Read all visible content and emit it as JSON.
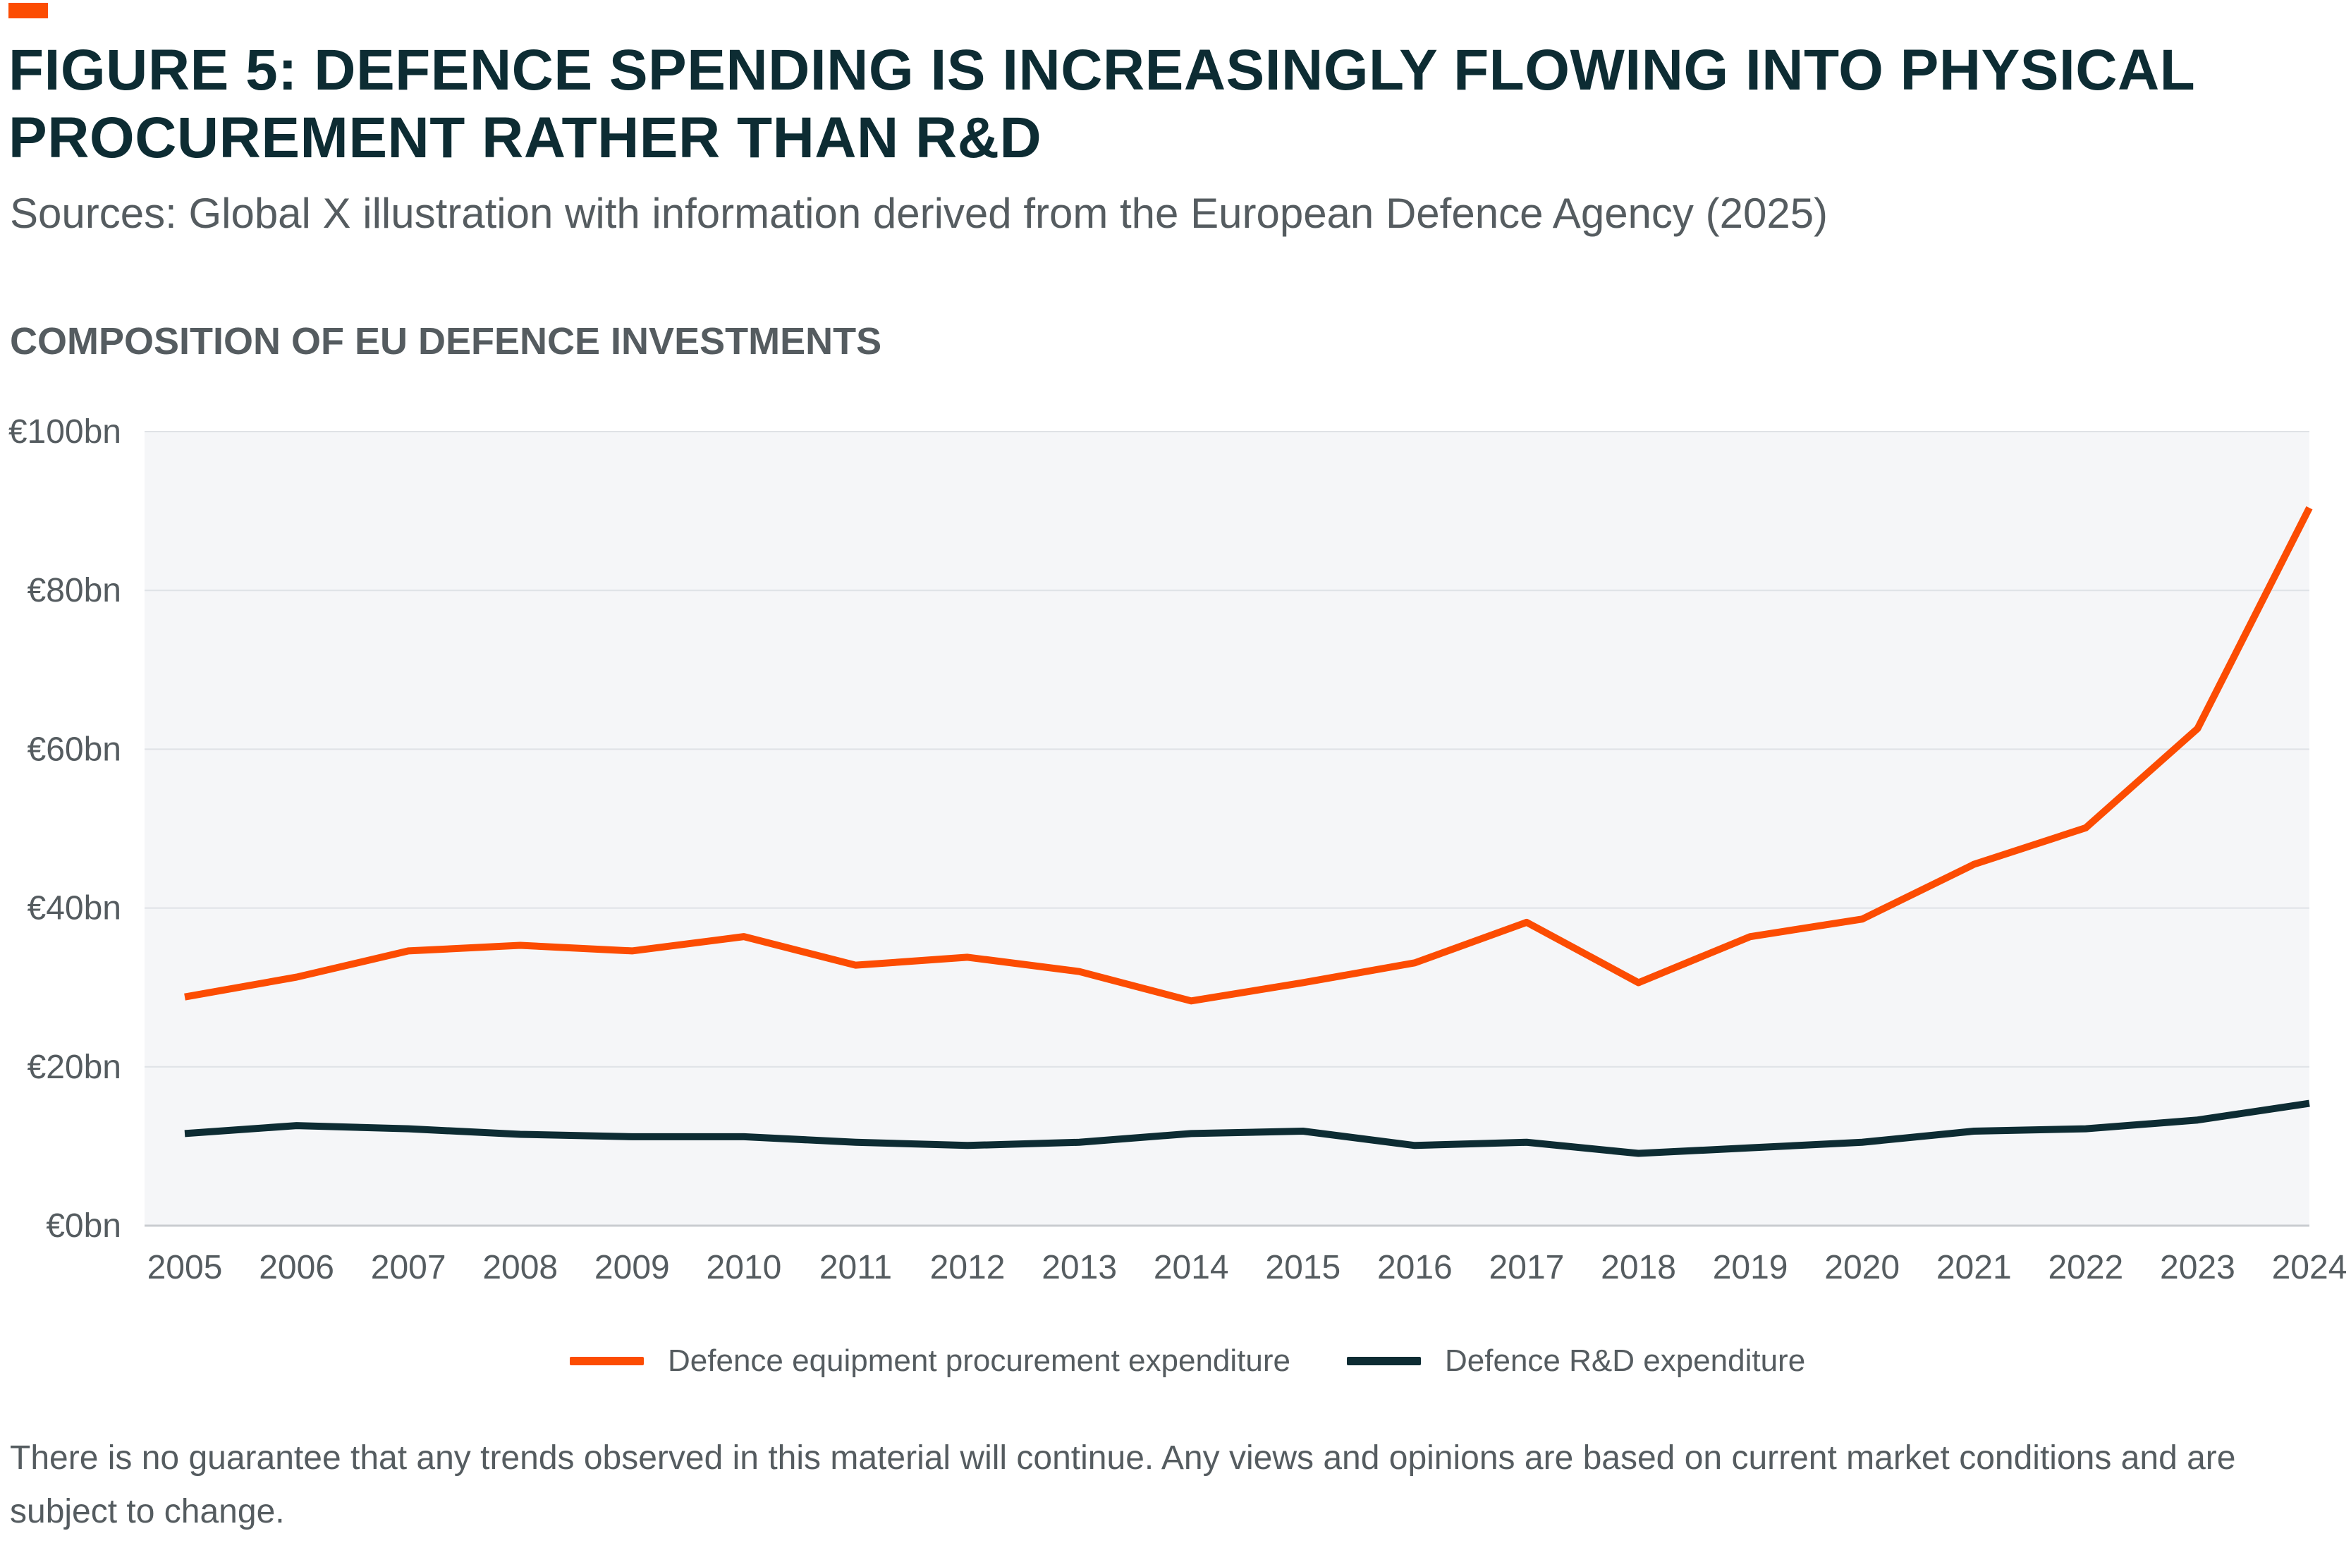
{
  "header": {
    "title": "FIGURE 5: DEFENCE SPENDING IS INCREASINGLY FLOWING INTO PHYSICAL PROCUREMENT RATHER THAN R&D",
    "subtitle": "Sources: Global X illustration with information derived from the European Defence Agency (2025)",
    "chart_heading": "COMPOSITION OF EU DEFENCE INVESTMENTS"
  },
  "chart_data": {
    "type": "line",
    "title": "COMPOSITION OF EU DEFENCE INVESTMENTS",
    "xlabel": "",
    "ylabel": "",
    "x": [
      "2005",
      "2006",
      "2007",
      "2008",
      "2009",
      "2010",
      "2011",
      "2012",
      "2013",
      "2014",
      "2015",
      "2016",
      "2017",
      "2018",
      "2019",
      "2020",
      "2021",
      "2022",
      "2023",
      "2024"
    ],
    "ylim": [
      0,
      100
    ],
    "yticks": [
      0,
      20,
      40,
      60,
      80,
      100
    ],
    "ytick_labels": [
      "€0bn",
      "€20bn",
      "€40bn",
      "€60bn",
      "€80bn",
      "€100bn"
    ],
    "grid": true,
    "legend_position": "bottom-center",
    "series": [
      {
        "name": "Defence equipment procurement expenditure",
        "color": "#fc4c02",
        "values": [
          28.8,
          31.3,
          34.6,
          35.3,
          34.6,
          36.4,
          32.8,
          33.8,
          32.0,
          28.3,
          30.6,
          33.1,
          38.2,
          30.6,
          36.4,
          38.6,
          45.5,
          50.1,
          62.6,
          90.4
        ]
      },
      {
        "name": "Defence R&D expenditure",
        "color": "#0d2c33",
        "values": [
          11.6,
          12.6,
          12.2,
          11.5,
          11.2,
          11.2,
          10.5,
          10.1,
          10.5,
          11.6,
          11.9,
          10.1,
          10.5,
          9.1,
          9.8,
          10.5,
          11.9,
          12.2,
          13.3,
          15.4
        ]
      }
    ]
  },
  "footnote": "There is no guarantee that any trends observed in this material will continue. Any views and opinions are based on current market conditions and are subject to change."
}
